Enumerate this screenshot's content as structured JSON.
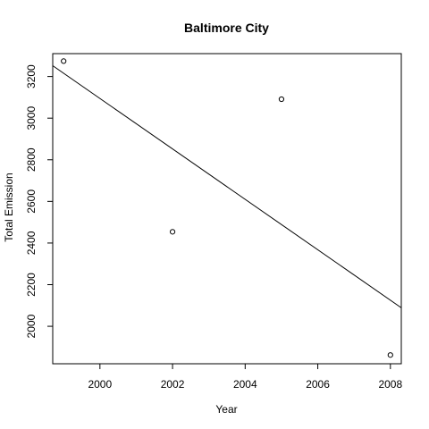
{
  "chart_data": {
    "type": "scatter",
    "title": "Baltimore City",
    "xlabel": "Year",
    "ylabel": "Total Emission",
    "xlim": [
      1998.7,
      2008.3
    ],
    "ylim": [
      1820,
      3310
    ],
    "x_ticks": [
      2000,
      2002,
      2004,
      2006,
      2008
    ],
    "x_tick_labels": [
      "2000",
      "2002",
      "2004",
      "2006",
      "2008"
    ],
    "y_ticks": [
      2000,
      2200,
      2400,
      2600,
      2800,
      3000,
      3200
    ],
    "y_tick_labels": [
      "2000",
      "2200",
      "2400",
      "2600",
      "2800",
      "3000",
      "3200"
    ],
    "points": [
      {
        "x": 1999,
        "y": 3274
      },
      {
        "x": 2002,
        "y": 2454
      },
      {
        "x": 2005,
        "y": 3091
      },
      {
        "x": 2008,
        "y": 1862
      }
    ],
    "trendline": {
      "type": "linear",
      "points": [
        {
          "x": 1998.7,
          "y": 3252
        },
        {
          "x": 2008.3,
          "y": 2089
        }
      ]
    },
    "grid": false,
    "legend": "none",
    "colors": {
      "axis": "#000000",
      "points": "#000000",
      "line": "#000000",
      "background": "#ffffff"
    }
  }
}
